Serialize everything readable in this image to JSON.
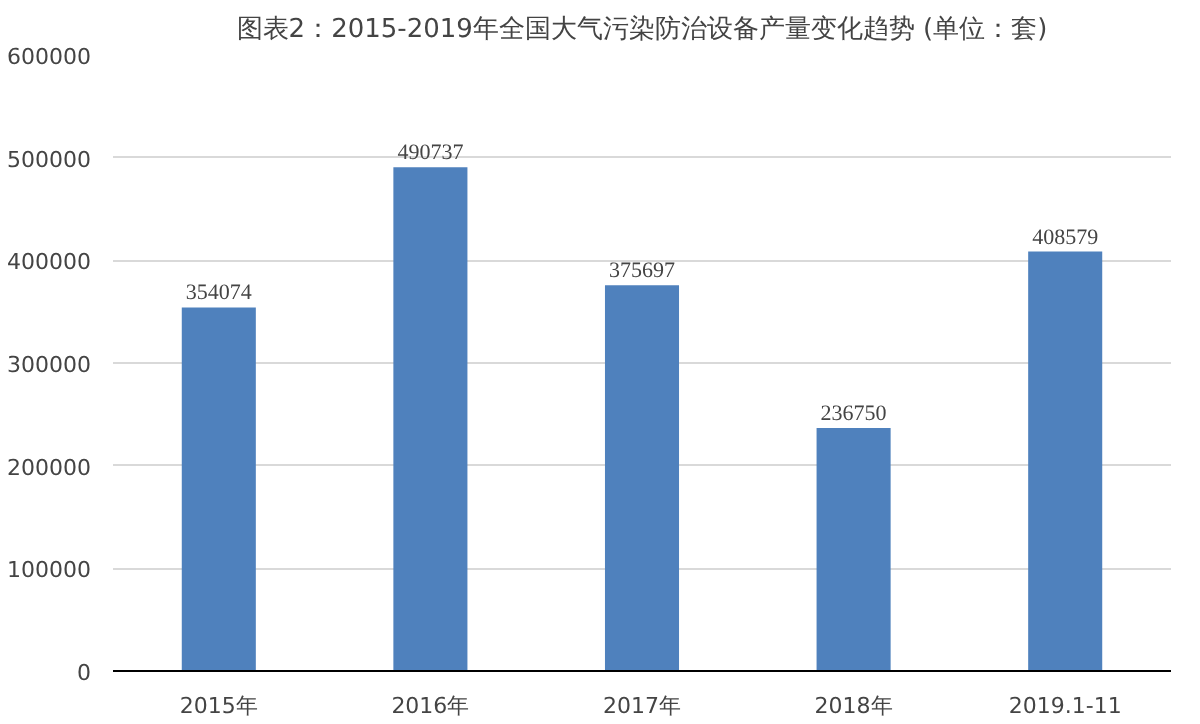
{
  "chart_data": {
    "type": "bar",
    "title": "图表2：2015-2019年全国大气污染防治设备产量变化趋势 (单位：套)",
    "categories": [
      "2015年",
      "2016年",
      "2017年",
      "2018年",
      "2019.1-11"
    ],
    "values": [
      354074,
      490737,
      375697,
      236750,
      408579
    ],
    "color": "#4f81bd",
    "data_labels": true,
    "grid": "y",
    "ylim": [
      0,
      600000
    ],
    "yticks": [
      0,
      100000,
      200000,
      300000,
      400000,
      500000,
      600000
    ]
  }
}
